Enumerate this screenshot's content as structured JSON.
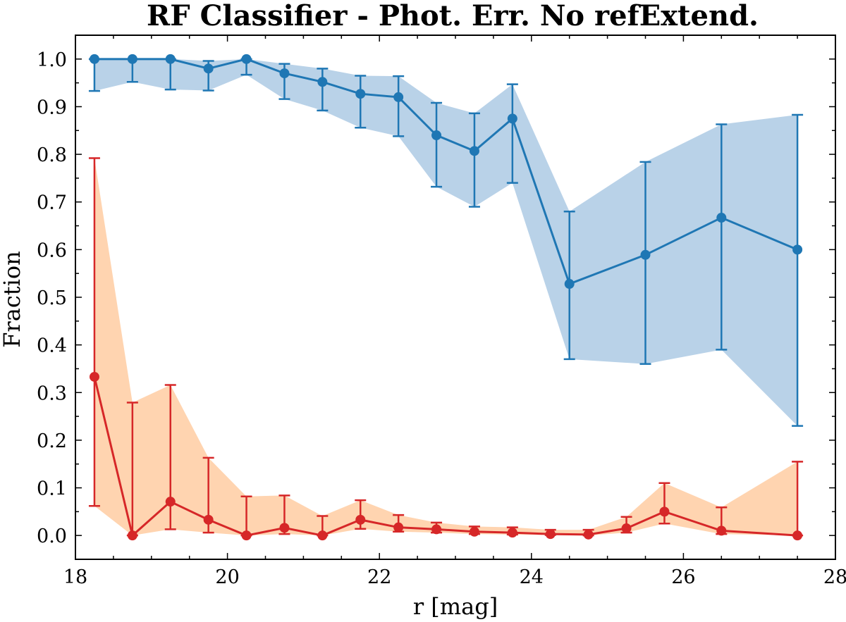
{
  "chart_data": {
    "type": "line",
    "title": "RF Classifier - Phot. Err. No refExtend.",
    "xlabel": "r [mag]",
    "ylabel": "Fraction",
    "xlim": [
      18,
      28
    ],
    "ylim": [
      -0.05,
      1.05
    ],
    "xticks": [
      "18",
      "20",
      "22",
      "24",
      "26",
      "28"
    ],
    "yticks": [
      "0.0",
      "0.1",
      "0.2",
      "0.3",
      "0.4",
      "0.5",
      "0.6",
      "0.7",
      "0.8",
      "0.9",
      "1.0"
    ],
    "grid": false,
    "legend": null,
    "series": [
      {
        "color": "#1f77b4",
        "band_color": "#b9d2e8",
        "x": [
          18.25,
          18.75,
          19.25,
          19.75,
          20.25,
          20.75,
          21.25,
          21.75,
          22.25,
          22.75,
          23.25,
          23.75,
          24.5,
          25.5,
          26.5,
          27.5
        ],
        "y": [
          1.0,
          1.0,
          1.0,
          0.98,
          1.0,
          0.97,
          0.952,
          0.927,
          0.92,
          0.84,
          0.807,
          0.875,
          0.528,
          0.589,
          0.667,
          0.6
        ],
        "lower": [
          0.933,
          0.952,
          0.936,
          0.934,
          0.967,
          0.916,
          0.892,
          0.856,
          0.838,
          0.732,
          0.69,
          0.74,
          0.37,
          0.36,
          0.39,
          0.23
        ],
        "upper": [
          1.0,
          1.0,
          1.0,
          0.996,
          1.0,
          0.99,
          0.98,
          0.965,
          0.964,
          0.908,
          0.886,
          0.947,
          0.68,
          0.784,
          0.863,
          0.883
        ]
      },
      {
        "color": "#d62728",
        "band_color": "#ffd4b0",
        "x": [
          18.25,
          18.75,
          19.25,
          19.75,
          20.25,
          20.75,
          21.25,
          21.75,
          22.25,
          22.75,
          23.25,
          23.75,
          24.25,
          24.75,
          25.25,
          25.75,
          26.5,
          27.5
        ],
        "y": [
          0.333,
          0.0,
          0.071,
          0.033,
          0.0,
          0.016,
          0.0,
          0.033,
          0.017,
          0.013,
          0.008,
          0.006,
          0.003,
          0.002,
          0.015,
          0.05,
          0.01,
          0.0
        ],
        "lower": [
          0.062,
          0.0,
          0.013,
          0.006,
          0.0,
          0.003,
          0.0,
          0.014,
          0.008,
          0.006,
          0.003,
          0.002,
          0.001,
          0.0,
          0.006,
          0.025,
          0.003,
          0.0
        ],
        "upper": [
          0.792,
          0.279,
          0.316,
          0.163,
          0.082,
          0.084,
          0.041,
          0.074,
          0.043,
          0.027,
          0.019,
          0.017,
          0.012,
          0.012,
          0.039,
          0.11,
          0.059,
          0.155
        ]
      }
    ]
  }
}
